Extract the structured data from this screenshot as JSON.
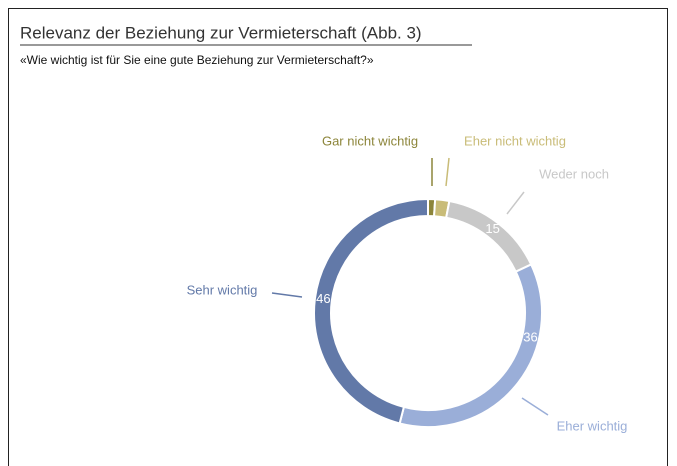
{
  "chart_data": {
    "type": "donut",
    "title": "Relevanz der Beziehung zur Vermieterschaft  (Abb. 3)",
    "subtitle": "«Wie wichtig ist für Sie eine gute Beziehung zur Vermieterschaft?»",
    "categories": [
      "Gar nicht wichtig",
      "Eher nicht wichtig",
      "Weder noch",
      "Eher wichtig",
      "Sehr wichtig"
    ],
    "values": [
      1,
      2,
      15,
      36,
      46
    ],
    "colors": [
      "#8c853a",
      "#c9bc78",
      "#c8c8c8",
      "#9aaed8",
      "#6279a8"
    ]
  }
}
